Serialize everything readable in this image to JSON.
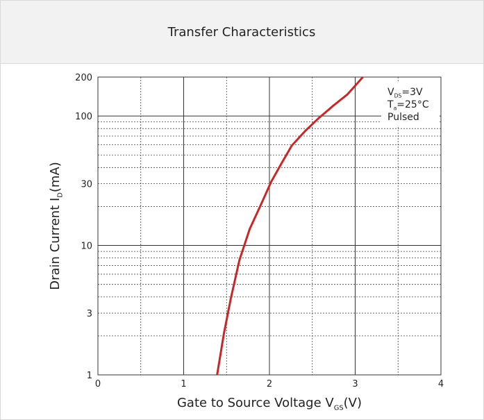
{
  "chart_data": {
    "type": "line",
    "title": "Transfer Characteristics",
    "xlabel": [
      "Gate to Source Voltage V",
      "GS",
      "(V)"
    ],
    "ylabel": [
      "Drain Current I",
      "D",
      "(mA)"
    ],
    "annotation": [
      [
        "V",
        "DS",
        "=3V"
      ],
      [
        "T",
        "a",
        "=25°C"
      ],
      [
        "Pulsed"
      ]
    ],
    "x": [
      1.39,
      1.47,
      1.55,
      1.65,
      1.77,
      1.9,
      2.02,
      2.14,
      2.26,
      2.42,
      2.58,
      2.75,
      2.91,
      3.09
    ],
    "series": [
      {
        "name": "ID",
        "color": "#c62828",
        "values": [
          1,
          2.1,
          3.9,
          7.7,
          13.4,
          20.6,
          31,
          43,
          59,
          77,
          97,
          121,
          147,
          200
        ]
      }
    ],
    "xlim": [
      0,
      4
    ],
    "xticks": [
      0,
      1,
      2,
      3,
      4
    ],
    "ylim": [
      1,
      200
    ],
    "yticks": [
      1,
      3,
      10,
      30,
      100,
      200
    ],
    "ylog": true,
    "xgrid_major": [
      1,
      2,
      3
    ],
    "xgrid_minor": [
      0.5,
      1.5,
      2.5,
      3.5
    ],
    "ygrid_major": [
      10,
      100
    ],
    "ygrid_minor": [
      2,
      3,
      4,
      5,
      6,
      7,
      8,
      9,
      20,
      30,
      40,
      50,
      60,
      70,
      80,
      90
    ]
  }
}
